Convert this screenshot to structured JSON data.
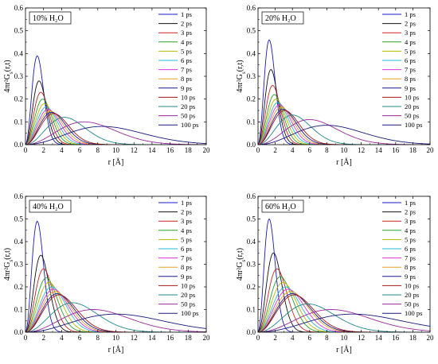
{
  "figure": {
    "x_label": "r [Å]",
    "y_label": "4πr²G_s(r,t)",
    "curve_colors": [
      "#1a1acc",
      "#111111",
      "#cc2222",
      "#2aa02a",
      "#b8b800",
      "#22bbdd",
      "#dd33dd",
      "#e8a020",
      "#1a1a90",
      "#a01818",
      "#208888",
      "#9c2a9c",
      "#1a1a7a"
    ]
  },
  "chart_data": [
    {
      "type": "line",
      "title": "10% H₂O",
      "xlabel": "r [Å]",
      "ylabel": "4πr²G_s(r,t)",
      "xlim": [
        0,
        20
      ],
      "ylim": [
        0,
        0.6
      ],
      "x_ticks": [
        0,
        2,
        4,
        6,
        8,
        10,
        12,
        14,
        16,
        18,
        20
      ],
      "y_ticks": [
        0.0,
        0.1,
        0.2,
        0.3,
        0.4,
        0.5,
        0.6
      ],
      "legend_position": "top-right",
      "series": [
        {
          "name": "1 ps",
          "peak_r": 1.3,
          "peak_value": 0.39
        },
        {
          "name": "2 ps",
          "peak_r": 1.5,
          "peak_value": 0.28
        },
        {
          "name": "3 ps",
          "peak_r": 1.7,
          "peak_value": 0.23
        },
        {
          "name": "4 ps",
          "peak_r": 1.9,
          "peak_value": 0.2
        },
        {
          "name": "5 ps",
          "peak_r": 2.1,
          "peak_value": 0.18
        },
        {
          "name": "6 ps",
          "peak_r": 2.3,
          "peak_value": 0.165
        },
        {
          "name": "7 ps",
          "peak_r": 2.5,
          "peak_value": 0.155
        },
        {
          "name": "8 ps",
          "peak_r": 2.7,
          "peak_value": 0.148
        },
        {
          "name": "9 ps",
          "peak_r": 2.9,
          "peak_value": 0.142
        },
        {
          "name": "10 ps",
          "peak_r": 3.1,
          "peak_value": 0.137
        },
        {
          "name": "20 ps",
          "peak_r": 4.3,
          "peak_value": 0.12
        },
        {
          "name": "50 ps",
          "peak_r": 6.5,
          "peak_value": 0.1
        },
        {
          "name": "100 ps",
          "peak_r": 8.5,
          "peak_value": 0.08
        }
      ]
    },
    {
      "type": "line",
      "title": "20% H₂O",
      "xlabel": "r [Å]",
      "ylabel": "4πr²G_s(r,t)",
      "xlim": [
        0,
        20
      ],
      "ylim": [
        0,
        0.6
      ],
      "x_ticks": [
        0,
        2,
        4,
        6,
        8,
        10,
        12,
        14,
        16,
        18,
        20
      ],
      "y_ticks": [
        0.0,
        0.1,
        0.2,
        0.3,
        0.4,
        0.5,
        0.6
      ],
      "legend_position": "top-right",
      "series": [
        {
          "name": "1 ps",
          "peak_r": 1.3,
          "peak_value": 0.46
        },
        {
          "name": "2 ps",
          "peak_r": 1.5,
          "peak_value": 0.33
        },
        {
          "name": "3 ps",
          "peak_r": 1.7,
          "peak_value": 0.26
        },
        {
          "name": "4 ps",
          "peak_r": 1.9,
          "peak_value": 0.22
        },
        {
          "name": "5 ps",
          "peak_r": 2.1,
          "peak_value": 0.2
        },
        {
          "name": "6 ps",
          "peak_r": 2.3,
          "peak_value": 0.185
        },
        {
          "name": "7 ps",
          "peak_r": 2.5,
          "peak_value": 0.175
        },
        {
          "name": "8 ps",
          "peak_r": 2.7,
          "peak_value": 0.165
        },
        {
          "name": "9 ps",
          "peak_r": 2.9,
          "peak_value": 0.155
        },
        {
          "name": "10 ps",
          "peak_r": 3.1,
          "peak_value": 0.15
        },
        {
          "name": "20 ps",
          "peak_r": 4.0,
          "peak_value": 0.13
        },
        {
          "name": "50 ps",
          "peak_r": 6.0,
          "peak_value": 0.11
        },
        {
          "name": "100 ps",
          "peak_r": 8.0,
          "peak_value": 0.085
        }
      ]
    },
    {
      "type": "line",
      "title": "40% H₂O",
      "xlabel": "r [Å]",
      "ylabel": "4πr²G_s(r,t)",
      "xlim": [
        0,
        20
      ],
      "ylim": [
        0,
        0.6
      ],
      "x_ticks": [
        0,
        2,
        4,
        6,
        8,
        10,
        12,
        14,
        16,
        18,
        20
      ],
      "y_ticks": [
        0.0,
        0.1,
        0.2,
        0.3,
        0.4,
        0.5,
        0.6
      ],
      "legend_position": "top-right",
      "series": [
        {
          "name": "1 ps",
          "peak_r": 1.3,
          "peak_value": 0.49
        },
        {
          "name": "2 ps",
          "peak_r": 1.7,
          "peak_value": 0.34
        },
        {
          "name": "3 ps",
          "peak_r": 2.0,
          "peak_value": 0.28
        },
        {
          "name": "4 ps",
          "peak_r": 2.3,
          "peak_value": 0.24
        },
        {
          "name": "5 ps",
          "peak_r": 2.6,
          "peak_value": 0.22
        },
        {
          "name": "6 ps",
          "peak_r": 2.9,
          "peak_value": 0.2
        },
        {
          "name": "7 ps",
          "peak_r": 3.1,
          "peak_value": 0.19
        },
        {
          "name": "8 ps",
          "peak_r": 3.3,
          "peak_value": 0.18
        },
        {
          "name": "9 ps",
          "peak_r": 3.5,
          "peak_value": 0.17
        },
        {
          "name": "10 ps",
          "peak_r": 3.7,
          "peak_value": 0.165
        },
        {
          "name": "20 ps",
          "peak_r": 5.2,
          "peak_value": 0.13
        },
        {
          "name": "50 ps",
          "peak_r": 7.5,
          "peak_value": 0.1
        },
        {
          "name": "100 ps",
          "peak_r": 10.0,
          "peak_value": 0.08
        }
      ]
    },
    {
      "type": "line",
      "title": "60% H₂O",
      "xlabel": "r [Å]",
      "ylabel": "4πr²G_s(r,t)",
      "xlim": [
        0,
        20
      ],
      "ylim": [
        0,
        0.6
      ],
      "x_ticks": [
        0,
        2,
        4,
        6,
        8,
        10,
        12,
        14,
        16,
        18,
        20
      ],
      "y_ticks": [
        0.0,
        0.1,
        0.2,
        0.3,
        0.4,
        0.5,
        0.6
      ],
      "legend_position": "top-right",
      "series": [
        {
          "name": "1 ps",
          "peak_r": 1.3,
          "peak_value": 0.5
        },
        {
          "name": "2 ps",
          "peak_r": 1.8,
          "peak_value": 0.35
        },
        {
          "name": "3 ps",
          "peak_r": 2.2,
          "peak_value": 0.28
        },
        {
          "name": "4 ps",
          "peak_r": 2.6,
          "peak_value": 0.245
        },
        {
          "name": "5 ps",
          "peak_r": 2.9,
          "peak_value": 0.22
        },
        {
          "name": "6 ps",
          "peak_r": 3.2,
          "peak_value": 0.2
        },
        {
          "name": "7 ps",
          "peak_r": 3.5,
          "peak_value": 0.19
        },
        {
          "name": "8 ps",
          "peak_r": 3.8,
          "peak_value": 0.18
        },
        {
          "name": "9 ps",
          "peak_r": 4.0,
          "peak_value": 0.17
        },
        {
          "name": "10 ps",
          "peak_r": 4.2,
          "peak_value": 0.165
        },
        {
          "name": "20 ps",
          "peak_r": 5.8,
          "peak_value": 0.125
        },
        {
          "name": "50 ps",
          "peak_r": 8.5,
          "peak_value": 0.1
        },
        {
          "name": "100 ps",
          "peak_r": 11.0,
          "peak_value": 0.08
        }
      ]
    }
  ]
}
